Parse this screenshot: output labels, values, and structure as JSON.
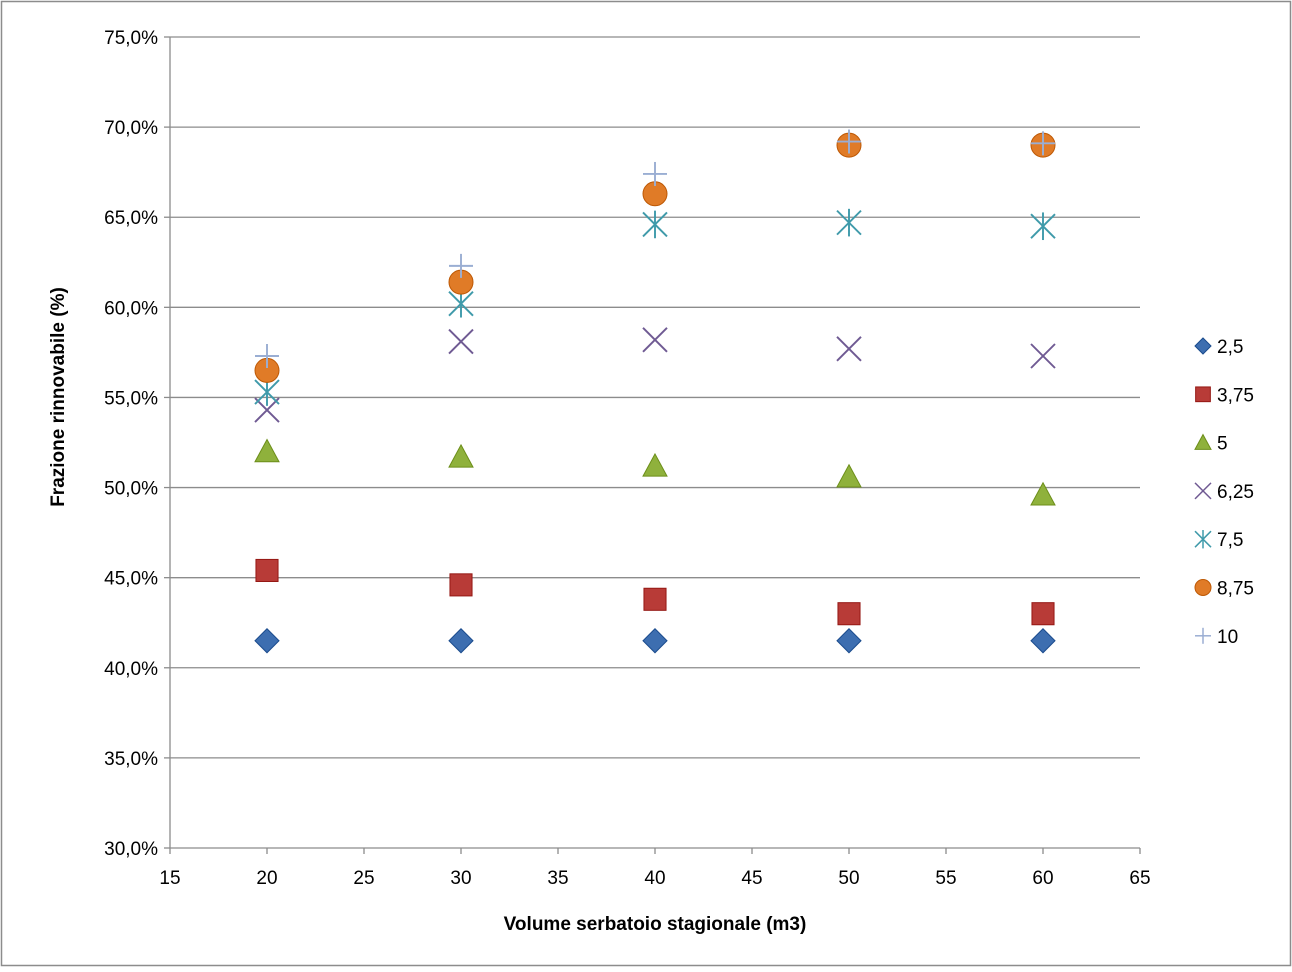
{
  "chart_data": {
    "type": "scatter",
    "title": "",
    "xlabel": "Volume serbatoio stagionale (m3)",
    "ylabel": "Frazione rinnovabile (%)",
    "xlim": [
      15,
      65
    ],
    "ylim": [
      30,
      75
    ],
    "x_ticks": [
      "15",
      "20",
      "25",
      "30",
      "35",
      "40",
      "45",
      "50",
      "55",
      "60",
      "65"
    ],
    "y_ticks": [
      "30,0%",
      "35,0%",
      "40,0%",
      "45,0%",
      "50,0%",
      "55,0%",
      "60,0%",
      "65,0%",
      "70,0%",
      "75,0%"
    ],
    "grid": "horizontal",
    "legend_position": "right",
    "x": [
      20,
      30,
      40,
      50,
      60
    ],
    "series": [
      {
        "name": "2,5",
        "marker": "diamond",
        "color": "#3d6eb0",
        "values": [
          41.5,
          41.5,
          41.5,
          41.5,
          41.5
        ]
      },
      {
        "name": "3,75",
        "marker": "square",
        "color": "#b83b37",
        "values": [
          45.4,
          44.6,
          43.8,
          43.0,
          43.0
        ]
      },
      {
        "name": "5",
        "marker": "triangle",
        "color": "#8fb13c",
        "values": [
          52.0,
          51.7,
          51.2,
          50.6,
          49.6
        ]
      },
      {
        "name": "6,25",
        "marker": "x",
        "color": "#6f5a93",
        "values": [
          54.3,
          58.1,
          58.2,
          57.7,
          57.3
        ]
      },
      {
        "name": "7,5",
        "marker": "asterisk",
        "color": "#3f9aaa",
        "values": [
          55.3,
          60.2,
          64.6,
          64.7,
          64.5
        ]
      },
      {
        "name": "8,75",
        "marker": "circle",
        "color": "#e07b27",
        "values": [
          56.5,
          61.4,
          66.3,
          69.0,
          69.0
        ]
      },
      {
        "name": "10",
        "marker": "plus",
        "color": "#9aaed3",
        "values": [
          57.3,
          62.3,
          67.4,
          69.2,
          69.1
        ]
      }
    ]
  }
}
